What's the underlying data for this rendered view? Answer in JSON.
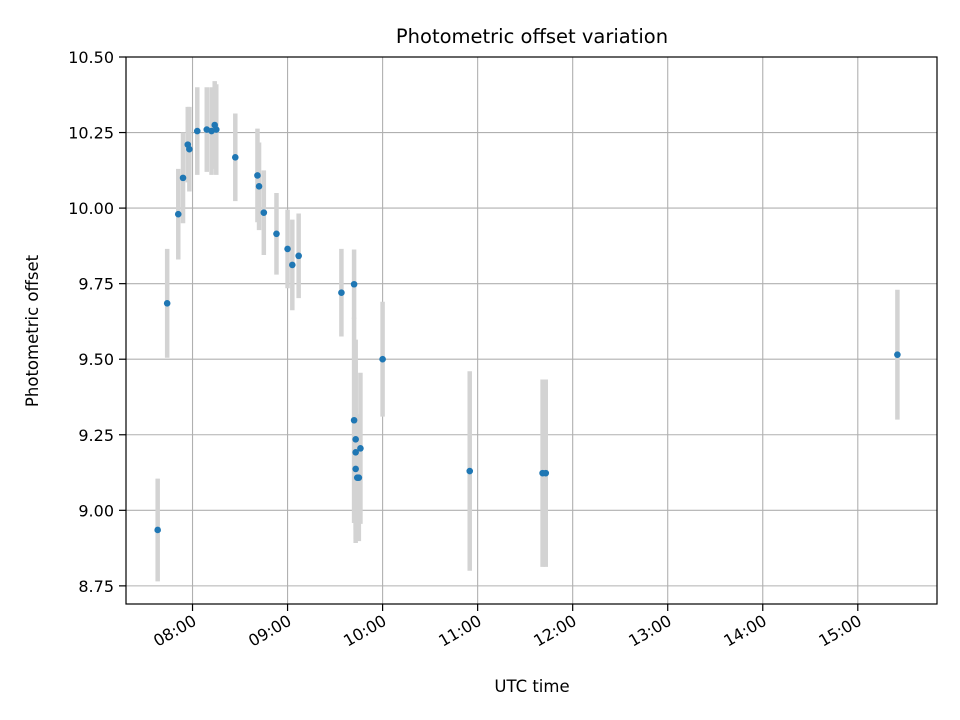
{
  "chart_data": {
    "type": "scatter",
    "title": "Photometric offset variation",
    "xlabel": "UTC time",
    "ylabel": "Photometric offset",
    "xlim": [
      "07:18",
      "15:50"
    ],
    "ylim": [
      8.69,
      10.5
    ],
    "x_ticks": [
      "08:00",
      "09:00",
      "10:00",
      "11:00",
      "12:00",
      "13:00",
      "14:00",
      "15:00"
    ],
    "y_ticks": [
      "8.75",
      "9.00",
      "9.25",
      "9.50",
      "9.75",
      "10.00",
      "10.25",
      "10.50"
    ],
    "grid": true,
    "marker_color": "#1f77b4",
    "errorbar_color": "#d3d3d3",
    "points": [
      {
        "x": "07:38",
        "y": 8.935,
        "err": 0.17
      },
      {
        "x": "07:44",
        "y": 9.685,
        "err": 0.18
      },
      {
        "x": "07:51",
        "y": 9.98,
        "err": 0.15
      },
      {
        "x": "07:54",
        "y": 10.1,
        "err": 0.15
      },
      {
        "x": "07:57",
        "y": 10.21,
        "err": 0.125
      },
      {
        "x": "07:58",
        "y": 10.195,
        "err": 0.14
      },
      {
        "x": "08:03",
        "y": 10.255,
        "err": 0.145
      },
      {
        "x": "08:09",
        "y": 10.26,
        "err": 0.14
      },
      {
        "x": "08:12",
        "y": 10.255,
        "err": 0.145
      },
      {
        "x": "08:14",
        "y": 10.275,
        "err": 0.145
      },
      {
        "x": "08:15",
        "y": 10.26,
        "err": 0.15
      },
      {
        "x": "08:27",
        "y": 10.168,
        "err": 0.145
      },
      {
        "x": "08:41",
        "y": 10.108,
        "err": 0.155
      },
      {
        "x": "08:42",
        "y": 10.072,
        "err": 0.145
      },
      {
        "x": "08:45",
        "y": 9.985,
        "err": 0.14
      },
      {
        "x": "08:53",
        "y": 9.915,
        "err": 0.135
      },
      {
        "x": "09:00",
        "y": 9.865,
        "err": 0.13
      },
      {
        "x": "09:03",
        "y": 9.812,
        "err": 0.15
      },
      {
        "x": "09:07",
        "y": 9.842,
        "err": 0.14
      },
      {
        "x": "09:34",
        "y": 9.72,
        "err": 0.145
      },
      {
        "x": "09:42",
        "y": 9.748,
        "err": 0.115
      },
      {
        "x": "09:42",
        "y": 9.298,
        "err": 0.34
      },
      {
        "x": "09:43",
        "y": 9.235,
        "err": 0.33
      },
      {
        "x": "09:43",
        "y": 9.192,
        "err": 0.3
      },
      {
        "x": "09:43",
        "y": 9.137,
        "err": 0.2
      },
      {
        "x": "09:44",
        "y": 9.108,
        "err": 0.2
      },
      {
        "x": "09:45",
        "y": 9.108,
        "err": 0.21
      },
      {
        "x": "09:46",
        "y": 9.205,
        "err": 0.25
      },
      {
        "x": "10:00",
        "y": 9.5,
        "err": 0.19
      },
      {
        "x": "10:55",
        "y": 9.13,
        "err": 0.33
      },
      {
        "x": "11:41",
        "y": 9.123,
        "err": 0.31
      },
      {
        "x": "11:43",
        "y": 9.123,
        "err": 0.31
      },
      {
        "x": "15:25",
        "y": 9.515,
        "err": 0.215
      }
    ]
  }
}
